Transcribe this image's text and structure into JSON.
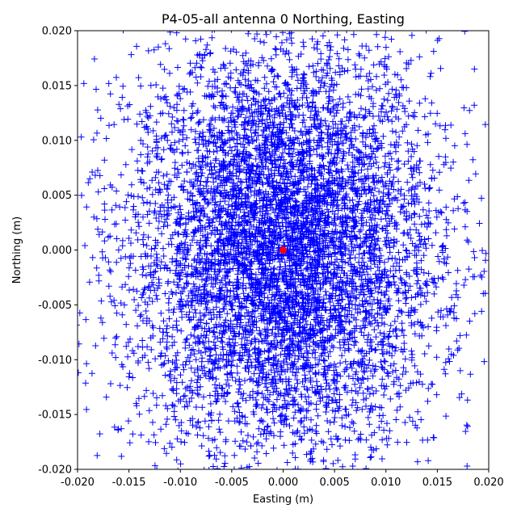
{
  "chart_data": {
    "type": "scatter",
    "title": "P4-05-all antenna 0 Northing, Easting",
    "xlabel": "Easting (m)",
    "ylabel": "Northing (m)",
    "xlim": [
      -0.02,
      0.02
    ],
    "ylim": [
      -0.02,
      0.02
    ],
    "xticks": [
      "-0.020",
      "-0.015",
      "-0.010",
      "-0.005",
      "0.000",
      "0.005",
      "0.010",
      "0.015",
      "0.020"
    ],
    "yticks": [
      "-0.020",
      "-0.015",
      "-0.010",
      "-0.005",
      "0.000",
      "0.005",
      "0.010",
      "0.015",
      "0.020"
    ],
    "grid": false,
    "series": [
      {
        "marker": "plus",
        "color": "#0000ff",
        "distribution": {
          "center_x": 0.0,
          "center_y": 0.0,
          "std_x": 0.0075,
          "std_y": 0.0095,
          "count": 30000
        }
      },
      {
        "marker": "circle",
        "color": "#ff0000",
        "points": [
          {
            "x": 0.0,
            "y": 0.0
          }
        ]
      }
    ]
  }
}
